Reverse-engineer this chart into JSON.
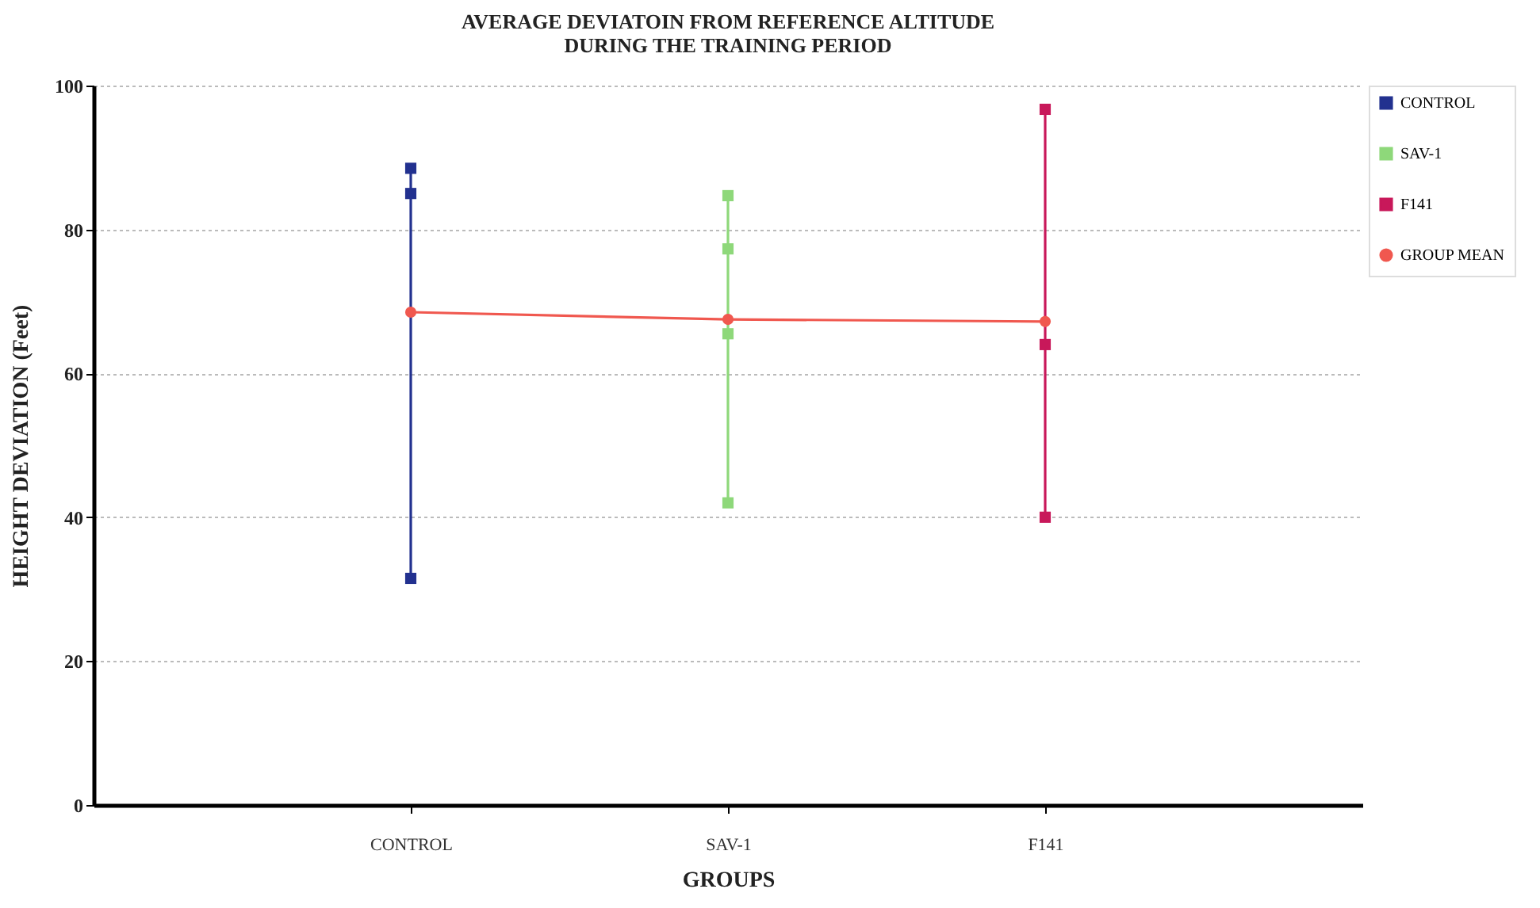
{
  "chart_data": {
    "type": "line",
    "title": "AVERAGE DEVIATOIN FROM REFERENCE ALTITUDE\nDURING THE TRAINING PERIOD",
    "xlabel": "GROUPS",
    "ylabel": "HEIGHT DEVIATION (Feet)",
    "categories": [
      "CONTROL",
      "SAV-1",
      "F141"
    ],
    "series": [
      {
        "name": "CONTROL",
        "color": "#22318f",
        "marker": "square",
        "x": [
          "CONTROL",
          "CONTROL",
          "CONTROL"
        ],
        "values": [
          88.5,
          85,
          31.5
        ]
      },
      {
        "name": "SAV-1",
        "color": "#8ed87a",
        "marker": "square",
        "x": [
          "SAV-1",
          "SAV-1",
          "SAV-1",
          "SAV-1"
        ],
        "values": [
          84.7,
          77.3,
          65.5,
          42
        ]
      },
      {
        "name": "F141",
        "color": "#c8185a",
        "marker": "square",
        "x": [
          "F141",
          "F141",
          "F141"
        ],
        "values": [
          96.7,
          64,
          40
        ]
      },
      {
        "name": "GROUP MEAN",
        "color": "#f0584f",
        "marker": "circle",
        "values": [
          68.5,
          67.5,
          67.2
        ]
      }
    ],
    "ylim": [
      0,
      100
    ],
    "yticks": [
      0,
      20,
      40,
      60,
      80,
      100
    ],
    "grid": "y",
    "legend": "right",
    "line_style": "solid"
  }
}
